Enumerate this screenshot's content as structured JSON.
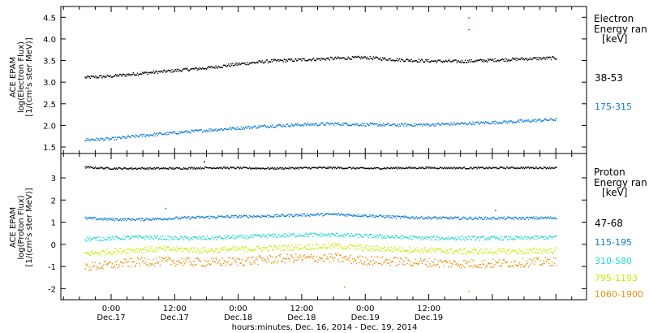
{
  "chart_data": [
    {
      "type": "scatter",
      "panel": "electron",
      "ylabel_lines": [
        "ACE EPAM",
        "log(Electron Flux)",
        "[1/(cm²s ster MeV)]"
      ],
      "ylim": [
        1.35,
        4.75
      ],
      "yticks": [
        1.5,
        2.0,
        2.5,
        3.0,
        3.5,
        4.0,
        4.5
      ],
      "yticklabels": [
        "1.5",
        "2.0",
        "2.5",
        "3.0",
        "3.5",
        "4.0",
        "4.5"
      ],
      "legend_title_lines": [
        "Electron",
        "Energy ran",
        "[keV]"
      ],
      "legend_placement": "right",
      "series": [
        {
          "name": "38-53",
          "color": "#000000",
          "x": [
            -5,
            0,
            6,
            12,
            18,
            24,
            30,
            36,
            42,
            48,
            54,
            60,
            66,
            72,
            78,
            84
          ],
          "y": [
            3.12,
            3.15,
            3.22,
            3.28,
            3.34,
            3.43,
            3.5,
            3.53,
            3.56,
            3.58,
            3.53,
            3.5,
            3.49,
            3.52,
            3.55,
            3.57
          ]
        },
        {
          "name": "175-315",
          "color": "#0a78d8",
          "x": [
            -5,
            0,
            6,
            12,
            18,
            24,
            30,
            36,
            42,
            48,
            54,
            60,
            66,
            72,
            78,
            84
          ],
          "y": [
            1.68,
            1.7,
            1.78,
            1.84,
            1.9,
            1.95,
            2.0,
            2.03,
            2.05,
            2.03,
            2.02,
            2.03,
            2.05,
            2.08,
            2.11,
            2.15
          ]
        }
      ],
      "annotations": [
        {
          "x": 67.5,
          "y": 4.5,
          "color": "#0a78d8"
        },
        {
          "x": 67.5,
          "y": 4.23,
          "color": "#0a78d8"
        }
      ]
    },
    {
      "type": "scatter",
      "panel": "proton",
      "ylabel_lines": [
        "ACE EPAM",
        "log(Proton Flux)",
        "[1/(cm²s ster MeV)]"
      ],
      "ylim": [
        -2.5,
        4.1
      ],
      "yticks": [
        -2,
        -1,
        0,
        1,
        2,
        3
      ],
      "yticklabels": [
        "-2",
        "-1",
        "0",
        "1",
        "2",
        "3"
      ],
      "legend_title_lines": [
        "Proton",
        "Energy ran",
        "[keV]"
      ],
      "legend_placement": "right",
      "series": [
        {
          "name": "47-68",
          "color": "#000000",
          "x": [
            -5,
            0,
            6,
            12,
            18,
            24,
            30,
            36,
            42,
            48,
            54,
            60,
            66,
            72,
            78,
            84
          ],
          "y": [
            3.5,
            3.45,
            3.45,
            3.45,
            3.48,
            3.47,
            3.45,
            3.47,
            3.48,
            3.45,
            3.47,
            3.48,
            3.47,
            3.47,
            3.48,
            3.48
          ]
        },
        {
          "name": "115-195",
          "color": "#0a78d8",
          "x": [
            -5,
            0,
            6,
            12,
            18,
            24,
            30,
            36,
            42,
            48,
            54,
            60,
            66,
            72,
            78,
            84
          ],
          "y": [
            1.2,
            1.15,
            1.15,
            1.2,
            1.25,
            1.28,
            1.3,
            1.35,
            1.38,
            1.32,
            1.25,
            1.22,
            1.2,
            1.2,
            1.2,
            1.22
          ]
        },
        {
          "name": "310-580",
          "color": "#1ed8d0",
          "x": [
            -5,
            0,
            6,
            12,
            18,
            24,
            30,
            36,
            42,
            48,
            54,
            60,
            66,
            72,
            78,
            84
          ],
          "y": [
            0.25,
            0.3,
            0.35,
            0.3,
            0.3,
            0.35,
            0.4,
            0.45,
            0.45,
            0.4,
            0.35,
            0.3,
            0.3,
            0.3,
            0.3,
            0.35
          ]
        },
        {
          "name": "795-1193",
          "color": "#c8ec00",
          "x": [
            -5,
            0,
            6,
            12,
            18,
            24,
            30,
            36,
            42,
            48,
            54,
            60,
            66,
            72,
            78,
            84
          ],
          "y": [
            -0.4,
            -0.3,
            -0.2,
            -0.2,
            -0.25,
            -0.2,
            -0.15,
            -0.1,
            -0.05,
            -0.15,
            -0.2,
            -0.25,
            -0.3,
            -0.3,
            -0.3,
            -0.25
          ]
        },
        {
          "name": "1060-1900",
          "color": "#e8900c",
          "x": [
            -5,
            0,
            6,
            12,
            18,
            24,
            30,
            36,
            42,
            48,
            54,
            60,
            66,
            72,
            78,
            84
          ],
          "y": [
            -1.0,
            -0.9,
            -0.75,
            -0.75,
            -0.8,
            -0.75,
            -0.65,
            -0.6,
            -0.6,
            -0.7,
            -0.75,
            -0.8,
            -0.85,
            -0.85,
            -0.8,
            -0.75
          ]
        }
      ],
      "annotations": [
        {
          "x": 17.5,
          "y": 3.75,
          "color": "#000000"
        },
        {
          "x": 10.2,
          "y": 1.65,
          "color": "#0a78d8"
        },
        {
          "x": 72.5,
          "y": 1.55,
          "color": "#0a78d8"
        },
        {
          "x": 44.0,
          "y": -1.9,
          "color": "#e8900c"
        },
        {
          "x": 67.5,
          "y": -2.1,
          "color": "#e8900c"
        }
      ]
    }
  ],
  "x_axis": {
    "xlim": [
      -9.5,
      89.8
    ],
    "tick_labels": [
      {
        "x": 0,
        "time": "0:00",
        "date": "Dec.17"
      },
      {
        "x": 12,
        "time": "12:00",
        "date": "Dec.17"
      },
      {
        "x": 24,
        "time": "0:00",
        "date": "Dec.18"
      },
      {
        "x": 36,
        "time": "12:00",
        "date": "Dec.18"
      },
      {
        "x": 48,
        "time": "0:00",
        "date": "Dec.19"
      },
      {
        "x": 60,
        "time": "12:00",
        "date": "Dec.19"
      }
    ],
    "xlabel": "hours:minutes, Dec. 16, 2014 - Dec. 19, 2014"
  }
}
